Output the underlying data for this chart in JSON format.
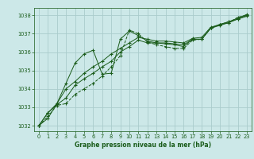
{
  "title": "Graphe pression niveau de la mer (hPa)",
  "bg_color": "#cce8e8",
  "grid_color": "#aacccc",
  "line_color": "#1a5c1a",
  "xlim": [
    -0.5,
    23.5
  ],
  "ylim": [
    1031.7,
    1038.4
  ],
  "xticks": [
    0,
    1,
    2,
    3,
    4,
    5,
    6,
    7,
    8,
    9,
    10,
    11,
    12,
    13,
    14,
    15,
    16,
    17,
    18,
    19,
    20,
    21,
    22,
    23
  ],
  "yticks": [
    1032,
    1033,
    1034,
    1035,
    1036,
    1037,
    1038
  ],
  "series": [
    [
      1032.0,
      1032.5,
      1033.1,
      1033.2,
      1033.7,
      1034.0,
      1034.3,
      1034.7,
      1035.2,
      1035.8,
      1037.2,
      1037.0,
      1036.55,
      1036.4,
      1036.3,
      1036.2,
      1036.2,
      1036.65,
      1036.7,
      1037.3,
      1037.5,
      1037.6,
      1037.9,
      1038.0
    ],
    [
      1032.0,
      1032.7,
      1033.15,
      1033.5,
      1034.2,
      1034.55,
      1034.85,
      1035.2,
      1035.5,
      1036.0,
      1036.3,
      1036.65,
      1036.5,
      1036.5,
      1036.5,
      1036.45,
      1036.4,
      1036.7,
      1036.7,
      1037.3,
      1037.5,
      1037.65,
      1037.8,
      1038.0
    ],
    [
      1032.0,
      1032.7,
      1033.2,
      1034.0,
      1034.4,
      1034.85,
      1035.2,
      1035.5,
      1035.9,
      1036.2,
      1036.5,
      1036.8,
      1036.7,
      1036.6,
      1036.6,
      1036.55,
      1036.5,
      1036.75,
      1036.8,
      1037.35,
      1037.5,
      1037.65,
      1037.85,
      1038.05
    ],
    [
      1032.0,
      1032.4,
      1033.2,
      1034.3,
      1035.4,
      1035.9,
      1036.1,
      1034.8,
      1034.85,
      1036.7,
      1037.15,
      1036.9,
      1036.6,
      1036.5,
      1036.45,
      1036.4,
      1036.3,
      1036.7,
      1036.7,
      1037.3,
      1037.45,
      1037.6,
      1037.8,
      1037.95
    ]
  ],
  "marker_styles": [
    "+",
    "+",
    "+",
    "+"
  ],
  "line_styles": [
    "--",
    "-",
    "-",
    "-"
  ],
  "linewidths": [
    0.7,
    0.7,
    0.7,
    0.7
  ],
  "markersizes": [
    3,
    3,
    3,
    3
  ],
  "title_fontsize": 5.5,
  "tick_fontsize": 4.8
}
